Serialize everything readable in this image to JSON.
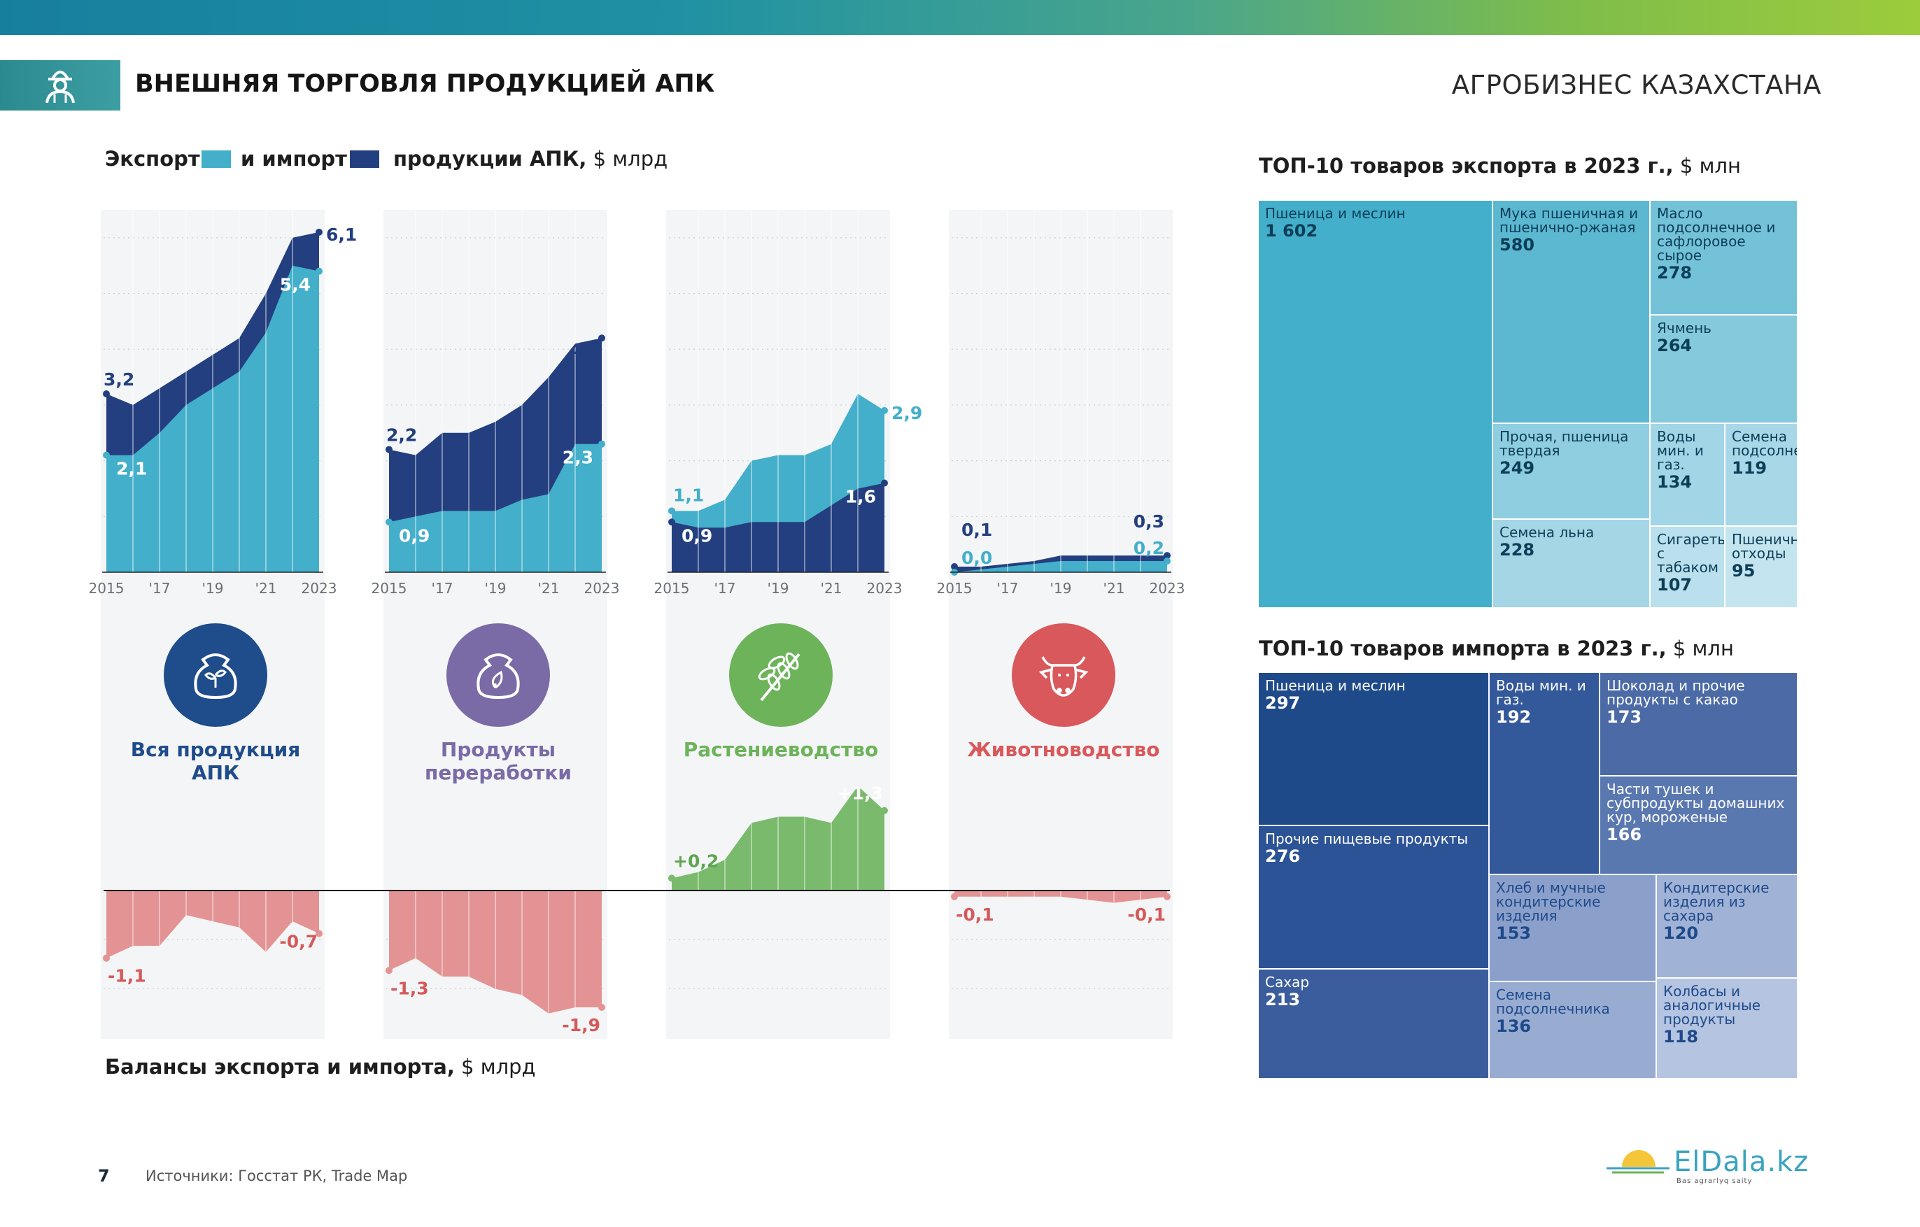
{
  "page": {
    "title": "ВНЕШНЯЯ ТОРГОВЛЯ ПРОДУКЦИЕЙ АПК",
    "brand": "АГРОБИЗНЕС КАЗАХСТАНА",
    "page_number": "7",
    "sources": "Источники: Госстат РК, Trade Map",
    "logo": {
      "text": "ElDala.kz",
      "tagline": "Bas agrarlyq saity"
    }
  },
  "colors": {
    "export": "#43afca",
    "import": "#233f7f",
    "positive": "#7aba6c",
    "negative": "#e39393",
    "accent": "#3c9ea3"
  },
  "legend": {
    "export_label": "Экспорт",
    "import_label": "и импорт",
    "suffix_bold": "продукции АПК,",
    "suffix_unit": " $ млрд"
  },
  "balance_title": {
    "bold": "Балансы экспорта и импорта,",
    "unit": " $ млрд"
  },
  "export_top_title": {
    "bold": "ТОП-10 товаров экспорта в 2023 г.,",
    "unit": " $ млн"
  },
  "import_top_title": {
    "bold": "ТОП-10 товаров импорта в 2023 г.,",
    "unit": " $ млн"
  },
  "categories": [
    {
      "name": "Вся продукция АПК",
      "color": "#1f4c8a",
      "icon": "sack-sprout-icon"
    },
    {
      "name": "Продукты переработки",
      "color": "#7a6aa6",
      "icon": "sack-leaf-icon"
    },
    {
      "name": "Растениеводство",
      "color": "#6cb35a",
      "icon": "wheat-icon"
    },
    {
      "name": "Животноводство",
      "color": "#d9585b",
      "icon": "cow-icon"
    }
  ],
  "chart_data": [
    {
      "type": "area",
      "title": "Вся продукция АПК",
      "x": [
        2015,
        2016,
        2017,
        2018,
        2019,
        2020,
        2021,
        2022,
        2023
      ],
      "x_tick_labels": [
        "2015",
        "'17",
        "'19",
        "'21",
        "2023"
      ],
      "ylim": [
        0,
        6.5
      ],
      "series": [
        {
          "name": "Импорт",
          "values": [
            3.2,
            3.0,
            3.3,
            3.6,
            3.9,
            4.2,
            5.0,
            6.0,
            6.1
          ],
          "labels": {
            "first": "3,2",
            "last": "6,1"
          }
        },
        {
          "name": "Экспорт",
          "values": [
            2.1,
            2.1,
            2.5,
            3.0,
            3.3,
            3.6,
            4.3,
            5.5,
            5.4
          ],
          "labels": {
            "first": "2,1",
            "last": "5,4"
          }
        },
        {
          "name": "Баланс",
          "values": [
            -1.1,
            -0.9,
            -0.9,
            -0.4,
            -0.5,
            -0.6,
            -1.0,
            -0.5,
            -0.7
          ],
          "labels": {
            "first": "-1,1",
            "last": "-0,7"
          }
        }
      ]
    },
    {
      "type": "area",
      "title": "Продукты переработки",
      "x": [
        2015,
        2016,
        2017,
        2018,
        2019,
        2020,
        2021,
        2022,
        2023
      ],
      "x_tick_labels": [
        "2015",
        "'17",
        "'19",
        "'21",
        "2023"
      ],
      "ylim": [
        0,
        6.5
      ],
      "series": [
        {
          "name": "Импорт",
          "values": [
            2.2,
            2.1,
            2.5,
            2.5,
            2.7,
            3.0,
            3.5,
            4.1,
            4.2
          ],
          "labels": {
            "first": "2,2",
            "last": "4,2"
          }
        },
        {
          "name": "Экспорт",
          "values": [
            0.9,
            1.0,
            1.1,
            1.1,
            1.1,
            1.3,
            1.4,
            2.3,
            2.3
          ],
          "labels": {
            "first": "0,9",
            "last": "2,3"
          }
        },
        {
          "name": "Баланс",
          "values": [
            -1.3,
            -1.1,
            -1.4,
            -1.4,
            -1.6,
            -1.7,
            -2.0,
            -1.9,
            -1.9
          ],
          "labels": {
            "first": "-1,3",
            "last": "-1,9"
          }
        }
      ]
    },
    {
      "type": "area",
      "title": "Растениеводство",
      "x": [
        2015,
        2016,
        2017,
        2018,
        2019,
        2020,
        2021,
        2022,
        2023
      ],
      "x_tick_labels": [
        "2015",
        "'17",
        "'19",
        "'21",
        "2023"
      ],
      "ylim": [
        0,
        6.5
      ],
      "series": [
        {
          "name": "Экспорт",
          "values": [
            1.1,
            1.1,
            1.3,
            2.0,
            2.1,
            2.1,
            2.3,
            3.2,
            2.9
          ],
          "labels": {
            "first": "1,1",
            "last": "2,9"
          }
        },
        {
          "name": "Импорт",
          "values": [
            0.9,
            0.8,
            0.8,
            0.9,
            0.9,
            0.9,
            1.2,
            1.5,
            1.6
          ],
          "labels": {
            "first": "0,9",
            "last": "1,6"
          }
        },
        {
          "name": "Баланс",
          "values": [
            0.2,
            0.3,
            0.5,
            1.1,
            1.2,
            1.2,
            1.1,
            1.7,
            1.3
          ],
          "labels": {
            "first": "+0,2",
            "last": "+1,3"
          }
        }
      ]
    },
    {
      "type": "area",
      "title": "Животноводство",
      "x": [
        2015,
        2016,
        2017,
        2018,
        2019,
        2020,
        2021,
        2022,
        2023
      ],
      "x_tick_labels": [
        "2015",
        "'17",
        "'19",
        "'21",
        "2023"
      ],
      "ylim": [
        0,
        6.5
      ],
      "series": [
        {
          "name": "Импорт",
          "values": [
            0.1,
            0.1,
            0.15,
            0.2,
            0.3,
            0.3,
            0.3,
            0.3,
            0.3
          ],
          "labels": {
            "first": "0,1",
            "last": "0,3"
          }
        },
        {
          "name": "Экспорт",
          "values": [
            0.0,
            0.05,
            0.1,
            0.15,
            0.2,
            0.2,
            0.2,
            0.2,
            0.2
          ],
          "labels": {
            "first": "0,0",
            "last": "0,2"
          }
        },
        {
          "name": "Баланс",
          "values": [
            -0.1,
            -0.1,
            -0.1,
            -0.1,
            -0.1,
            -0.15,
            -0.2,
            -0.15,
            -0.1
          ],
          "labels": {
            "first": "-0,1",
            "last": "-0,1"
          }
        }
      ]
    },
    {
      "type": "treemap",
      "title": "ТОП-10 товаров экспорта в 2023 г., $ млн",
      "items": [
        {
          "name": "Пшеница и меслин",
          "value": "1 602"
        },
        {
          "name": "Мука пшеничная и пшенично-ржаная",
          "value": "580"
        },
        {
          "name": "Масло подсолнечное и сафлоровое сырое",
          "value": "278"
        },
        {
          "name": "Ячмень",
          "value": "264"
        },
        {
          "name": "Прочая, пшеница твердая",
          "value": "249"
        },
        {
          "name": "Воды мин. и газ.",
          "value": "134"
        },
        {
          "name": "Семена подсолнечника",
          "value": "119"
        },
        {
          "name": "Семена льна",
          "value": "228"
        },
        {
          "name": "Сигареты с табаком",
          "value": "107"
        },
        {
          "name": "Пшеничные отходы",
          "value": "95"
        }
      ]
    },
    {
      "type": "treemap",
      "title": "ТОП-10 товаров импорта в 2023 г., $ млн",
      "items": [
        {
          "name": "Пшеница и меслин",
          "value": "297"
        },
        {
          "name": "Воды мин. и газ.",
          "value": "192"
        },
        {
          "name": "Шоколад и прочие продукты с какао",
          "value": "173"
        },
        {
          "name": "Части тушек и субпродукты домашних кур, мороженые",
          "value": "166"
        },
        {
          "name": "Прочие пищевые продукты",
          "value": "276"
        },
        {
          "name": "Хлеб и мучные кондитерские изделия",
          "value": "153"
        },
        {
          "name": "Кондитерские изделия из сахара",
          "value": "120"
        },
        {
          "name": "Сахар",
          "value": "213"
        },
        {
          "name": "Семена подсолнечника",
          "value": "136"
        },
        {
          "name": "Колбасы и аналогичные продукты",
          "value": "118"
        }
      ]
    }
  ]
}
